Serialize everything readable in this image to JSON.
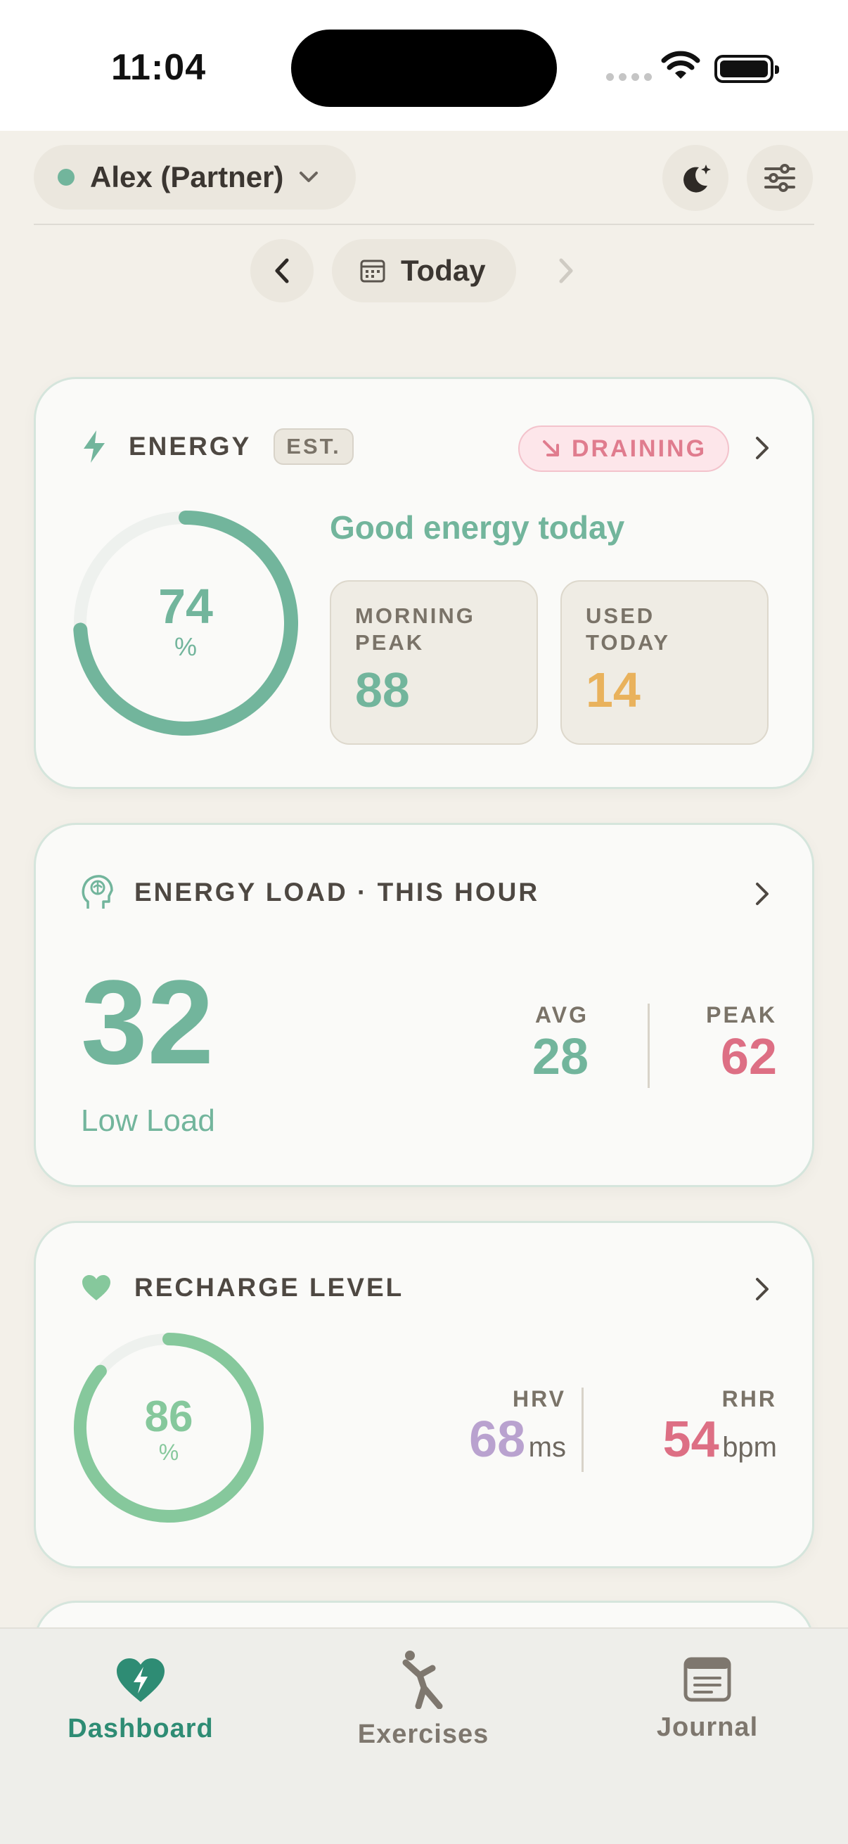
{
  "status_bar": {
    "time": "11:04"
  },
  "header": {
    "profile_name": "Alex (Partner)",
    "profile_status_color": "#72b59c",
    "icons": [
      "chevron-down-icon",
      "moon-icon",
      "sliders-icon"
    ]
  },
  "date_nav": {
    "label": "Today"
  },
  "energy_card": {
    "title": "ENERGY",
    "estimate_badge": "EST.",
    "trend_badge": "DRAINING",
    "percent": 74,
    "percent_unit": "%",
    "summary": "Good energy today",
    "stats": [
      {
        "label": "MORNING PEAK",
        "value": "88",
        "color": "#72b59c"
      },
      {
        "label": "USED TODAY",
        "value": "14",
        "color": "#e9b25c"
      }
    ]
  },
  "load_card": {
    "title": "ENERGY LOAD · THIS HOUR",
    "value": "32",
    "status": "Low Load",
    "avg_label": "AVG",
    "avg_value": "28",
    "peak_label": "PEAK",
    "peak_value": "62"
  },
  "recharge_card": {
    "title": "RECHARGE LEVEL",
    "percent": 86,
    "percent_unit": "%",
    "hrv_label": "HRV",
    "hrv_value": "68",
    "hrv_unit": "ms",
    "rhr_label": "RHR",
    "rhr_value": "54",
    "rhr_unit": "bpm"
  },
  "colors": {
    "accent_green": "#72b59c",
    "light_green": "#86c89c",
    "pink": "#dd6f84",
    "purple": "#b9a2cf",
    "amber": "#e9b25c"
  },
  "bottom_nav": {
    "items": [
      {
        "label": "Dashboard",
        "active": true
      },
      {
        "label": "Exercises",
        "active": false
      },
      {
        "label": "Journal",
        "active": false
      }
    ]
  }
}
